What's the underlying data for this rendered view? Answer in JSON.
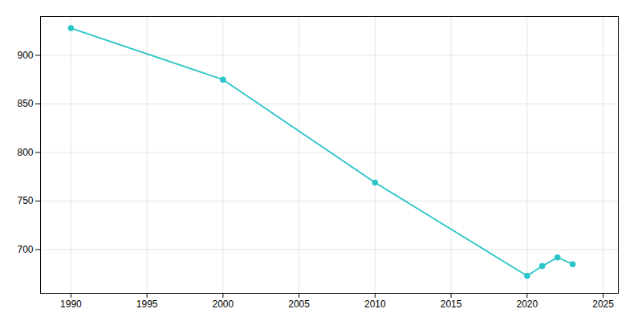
{
  "chart_data": {
    "type": "line",
    "x": [
      1990,
      2000,
      2010,
      2020,
      2021,
      2022,
      2023
    ],
    "values": [
      928,
      875,
      769,
      673,
      683,
      692,
      685
    ],
    "color": "#29C5C8",
    "marker": "circle",
    "xlim": [
      1988,
      2026
    ],
    "xticks": [
      1990,
      1995,
      2000,
      2005,
      2010,
      2015,
      2020,
      2025
    ],
    "ylim": [
      655,
      940
    ],
    "yticks": [
      700,
      750,
      800,
      850,
      900
    ],
    "grid": true
  }
}
